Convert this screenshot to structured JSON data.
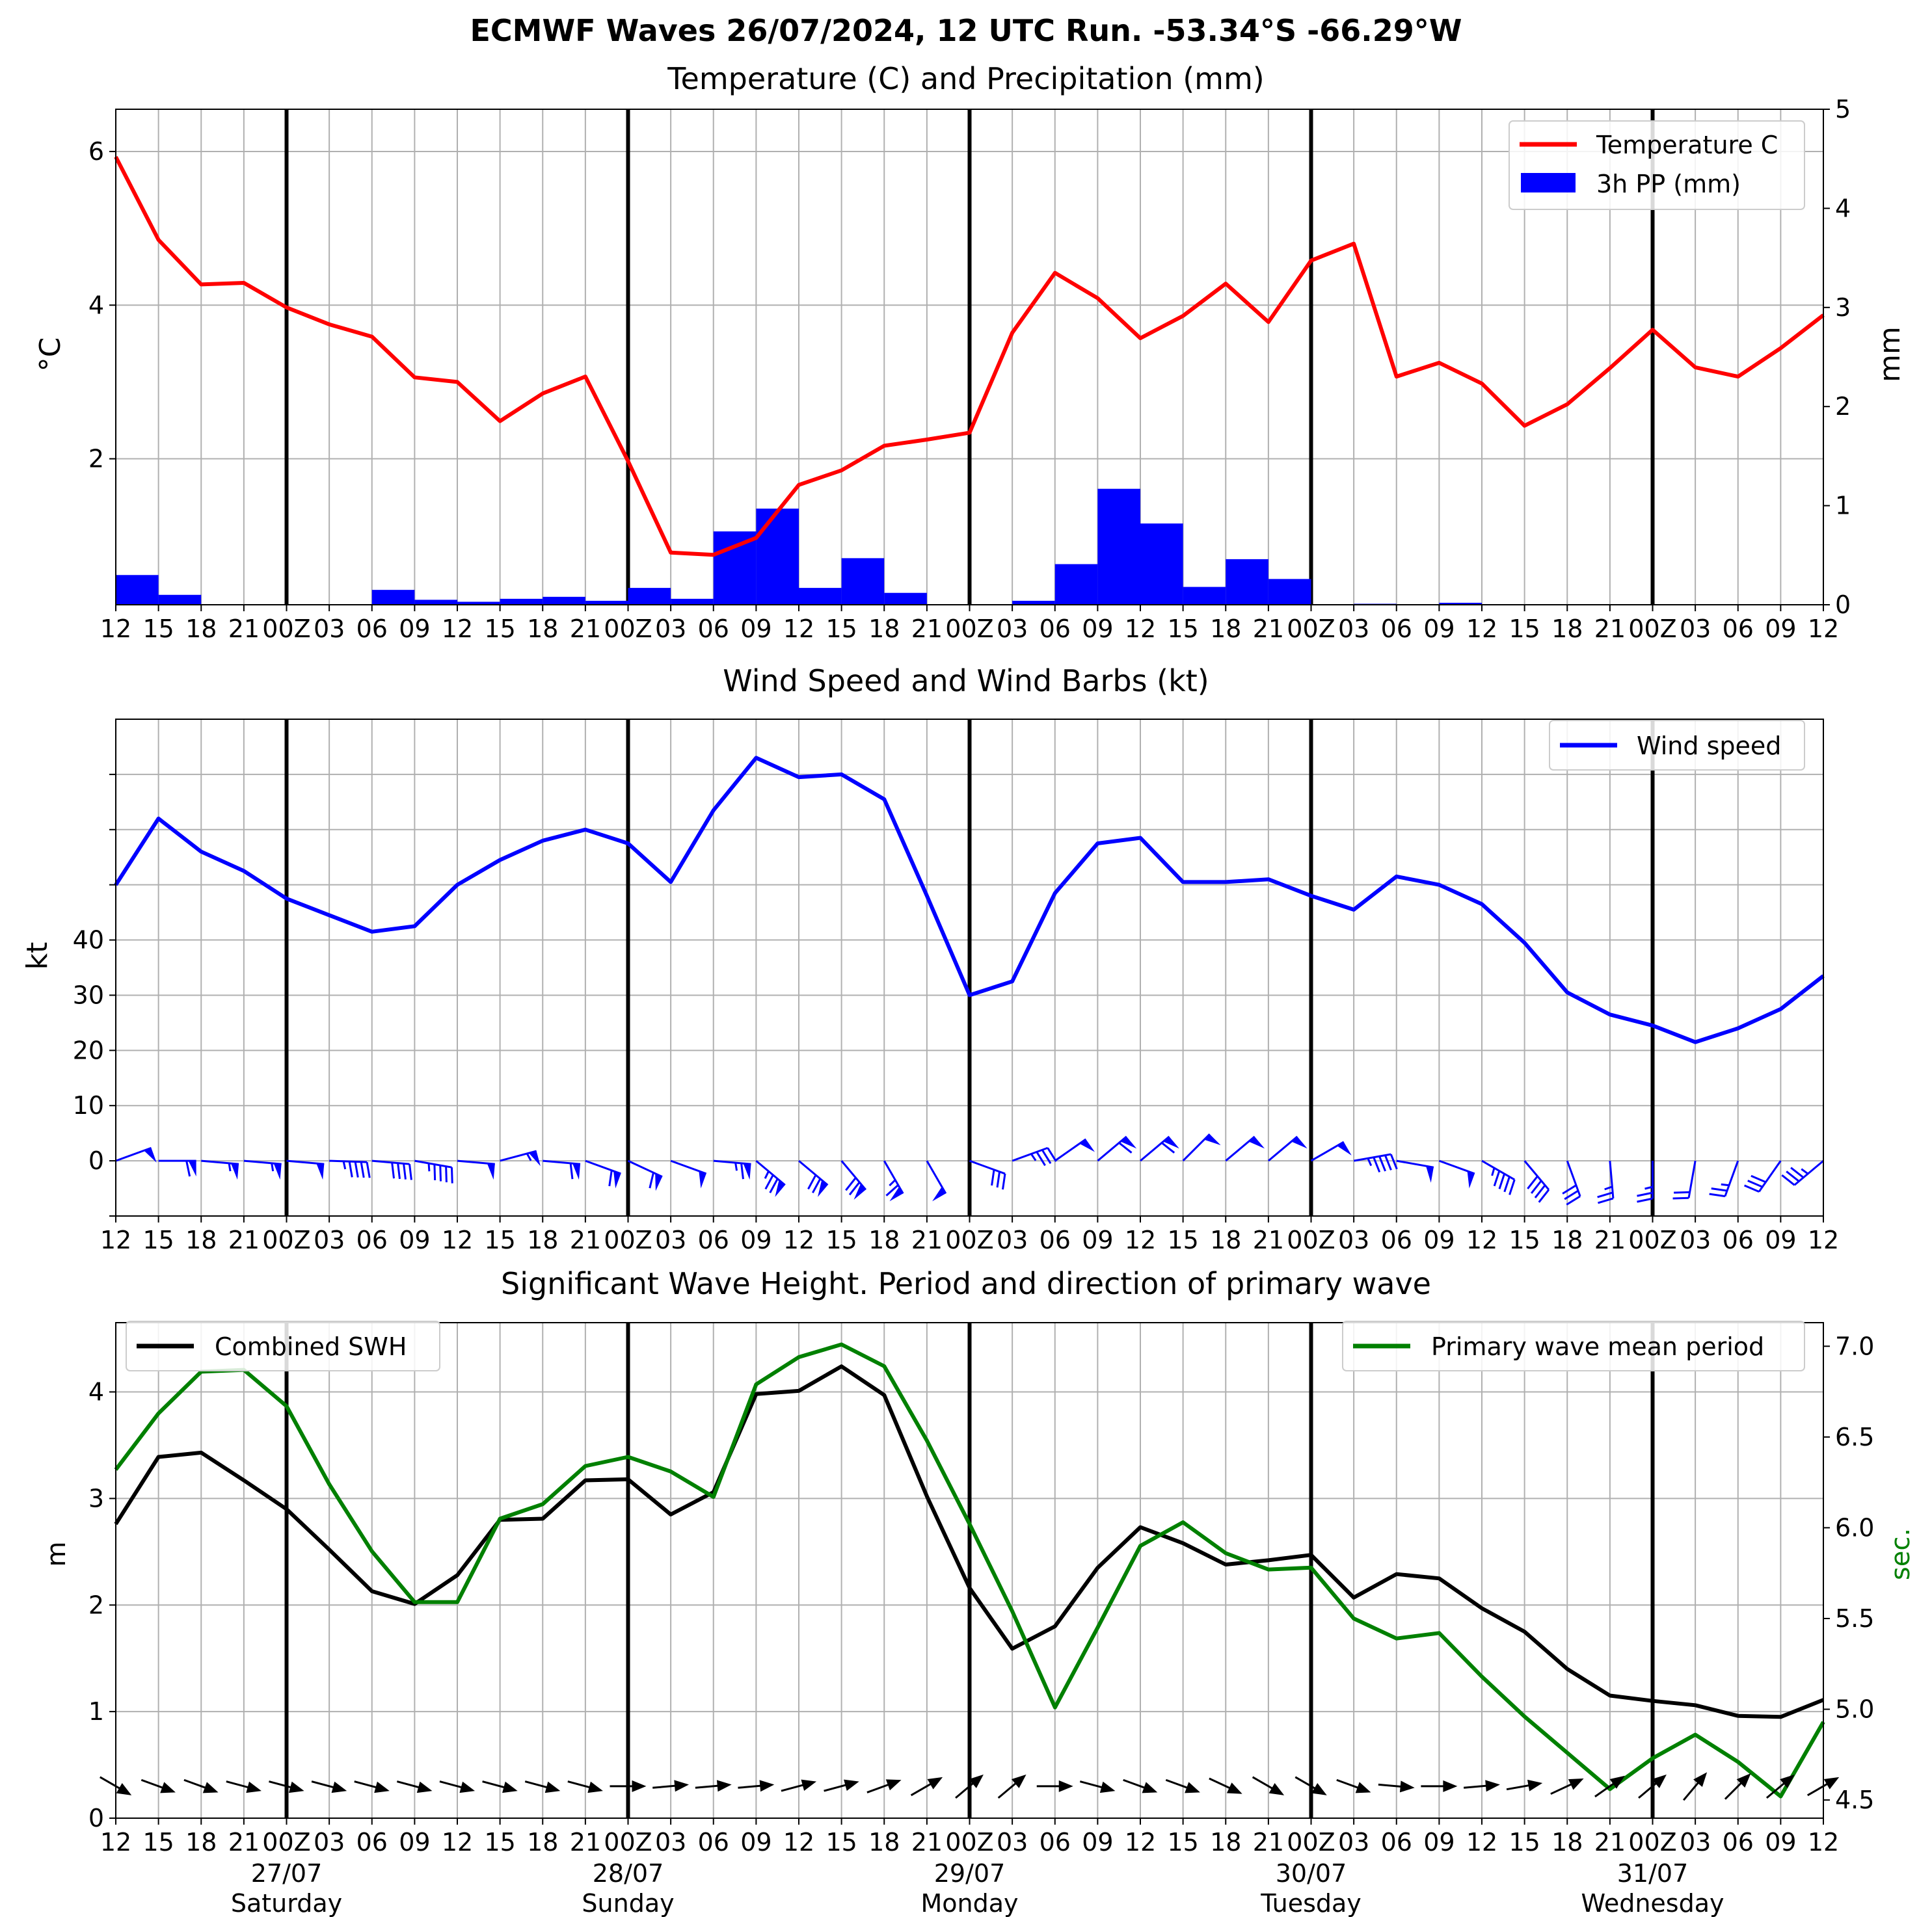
{
  "figure": {
    "title": "ECMWF Waves 26/07/2024, 12 UTC Run. -53.34°S -66.29°W"
  },
  "x_tick_labels": [
    "12",
    "15",
    "18",
    "21",
    "00Z",
    "03",
    "06",
    "09",
    "12",
    "15",
    "18",
    "21",
    "00Z",
    "03",
    "06",
    "09",
    "12",
    "15",
    "18",
    "21",
    "00Z",
    "03",
    "06",
    "09",
    "12",
    "15",
    "18",
    "21",
    "00Z",
    "03",
    "06",
    "09",
    "12",
    "15",
    "18",
    "21",
    "00Z",
    "03",
    "06",
    "09",
    "12"
  ],
  "day_labels": [
    {
      "date": "27/07",
      "day": "Saturday"
    },
    {
      "date": "28/07",
      "day": "Sunday"
    },
    {
      "date": "29/07",
      "day": "Monday"
    },
    {
      "date": "30/07",
      "day": "Tuesday"
    },
    {
      "date": "31/07",
      "day": "Wednesday"
    }
  ],
  "colors": {
    "temperature": "#ff0000",
    "precipitation": "#0000ff",
    "wind": "#0000ff",
    "swh": "#000000",
    "period": "#008000",
    "grid": "#b0b0b0",
    "day_line": "#000000"
  },
  "chart_data": [
    {
      "type": "line",
      "title": "Temperature (C) and Precipitation (mm)",
      "ylabel": "°C",
      "y2label": "mm",
      "ylim": [
        0.1,
        6.55
      ],
      "y2lim": [
        0,
        5
      ],
      "yticks": [
        2,
        4,
        6
      ],
      "y2ticks": [
        0,
        1,
        2,
        3,
        4,
        5
      ],
      "grid": true,
      "legend_position": "top-right",
      "series": [
        {
          "name": "Temperature C",
          "axis": "left",
          "kind": "line",
          "values": [
            5.93,
            4.85,
            4.27,
            4.29,
            3.97,
            3.75,
            3.59,
            3.06,
            3.0,
            2.49,
            2.85,
            3.07,
            1.97,
            0.78,
            0.75,
            0.97,
            1.66,
            1.85,
            2.17,
            2.25,
            2.34,
            3.64,
            4.42,
            4.09,
            3.57,
            3.86,
            4.28,
            3.78,
            4.58,
            4.8,
            3.07,
            3.25,
            2.98,
            2.43,
            2.71,
            3.18,
            3.68,
            3.19,
            3.07,
            3.44,
            3.87
          ]
        },
        {
          "name": "3h PP (mm)",
          "axis": "right",
          "kind": "bar",
          "values": [
            0.3,
            0.1,
            0,
            0,
            0,
            0,
            0.15,
            0.05,
            0.03,
            0.06,
            0.08,
            0.04,
            0.17,
            0.06,
            0.74,
            0.97,
            0.17,
            0.47,
            0.12,
            0,
            0,
            0.04,
            0.41,
            1.17,
            0.82,
            0.18,
            0.46,
            0.26,
            0,
            0.01,
            0,
            0.02,
            0,
            0,
            0,
            0,
            0,
            0,
            0,
            0
          ]
        }
      ]
    },
    {
      "type": "line",
      "title": "Wind Speed and Wind Barbs (kt)",
      "ylabel": "kt",
      "ylim": [
        -10,
        80
      ],
      "yticks": [
        0,
        10,
        20,
        30,
        40
      ],
      "grid": true,
      "legend_position": "top-right",
      "series": [
        {
          "name": "Wind speed",
          "values": [
            50,
            62,
            56,
            52.5,
            47.5,
            44.5,
            41.5,
            42.5,
            50,
            54.5,
            58,
            60,
            57.5,
            50.5,
            63.5,
            73,
            69.5,
            70,
            65.5,
            48,
            30,
            32.5,
            48.5,
            57.5,
            58.5,
            50.5,
            50.5,
            51,
            48,
            45.5,
            51.5,
            50,
            46.5,
            39.5,
            30.5,
            26.5,
            24.5,
            21.5,
            24,
            27.5,
            33.5
          ]
        }
      ],
      "barbs": {
        "speed_kt": [
          50,
          62,
          56,
          52.5,
          47.5,
          44.5,
          41.5,
          42.5,
          50,
          54.5,
          58,
          60,
          57.5,
          50.5,
          63.5,
          73,
          69.5,
          70,
          65.5,
          48,
          30,
          32.5,
          48.5,
          57.5,
          58.5,
          50.5,
          50.5,
          51,
          48,
          45.5,
          51.5,
          50,
          46.5,
          39.5,
          30.5,
          26.5,
          24.5,
          21.5,
          24,
          27.5,
          33.5
        ],
        "direction_from_deg": [
          70,
          90,
          95,
          95,
          95,
          92,
          95,
          100,
          95,
          75,
          95,
          110,
          115,
          110,
          95,
          130,
          130,
          140,
          150,
          150,
          110,
          70,
          55,
          50,
          50,
          45,
          50,
          50,
          60,
          80,
          100,
          110,
          120,
          140,
          160,
          175,
          180,
          190,
          200,
          215,
          230
        ]
      }
    },
    {
      "type": "line",
      "title": "Significant Wave Height. Period and direction of primary wave",
      "ylabel": "m",
      "y2label": "sec.",
      "ylim": [
        0,
        4.65
      ],
      "y2lim": [
        4.4,
        7.13
      ],
      "yticks": [
        0,
        1,
        2,
        3,
        4
      ],
      "y2ticks": [
        4.5,
        5.0,
        5.5,
        6.0,
        6.5,
        7.0
      ],
      "grid": true,
      "legend_positions": {
        "Combined SWH": "top-left",
        "Primary wave mean period": "top-right"
      },
      "series": [
        {
          "name": "Combined SWH",
          "axis": "left",
          "values": [
            2.76,
            3.39,
            3.43,
            3.17,
            2.9,
            2.52,
            2.13,
            2.01,
            2.28,
            2.8,
            2.81,
            3.17,
            3.18,
            2.85,
            3.06,
            3.98,
            4.01,
            4.24,
            3.97,
            3.02,
            2.16,
            1.59,
            1.8,
            2.35,
            2.73,
            2.58,
            2.38,
            2.42,
            2.47,
            2.07,
            2.29,
            2.25,
            1.97,
            1.75,
            1.4,
            1.15,
            1.1,
            1.06,
            0.96,
            0.95,
            1.11
          ]
        },
        {
          "name": "Primary wave mean period",
          "axis": "right",
          "values": [
            6.32,
            6.63,
            6.86,
            6.87,
            6.67,
            6.24,
            5.87,
            5.59,
            5.59,
            6.05,
            6.13,
            6.34,
            6.39,
            6.31,
            6.17,
            6.79,
            6.94,
            7.01,
            6.89,
            6.48,
            6.02,
            5.54,
            5.01,
            5.45,
            5.9,
            6.03,
            5.86,
            5.77,
            5.78,
            5.5,
            5.39,
            5.42,
            5.18,
            4.96,
            4.76,
            4.56,
            4.73,
            4.86,
            4.71,
            4.52,
            4.93
          ]
        }
      ],
      "wave_direction_deg": [
        300,
        290,
        290,
        285,
        285,
        285,
        285,
        285,
        285,
        285,
        285,
        285,
        270,
        265,
        265,
        265,
        255,
        255,
        250,
        240,
        230,
        230,
        270,
        285,
        290,
        290,
        295,
        300,
        300,
        290,
        275,
        270,
        265,
        260,
        245,
        235,
        230,
        220,
        225,
        230,
        240
      ]
    }
  ]
}
